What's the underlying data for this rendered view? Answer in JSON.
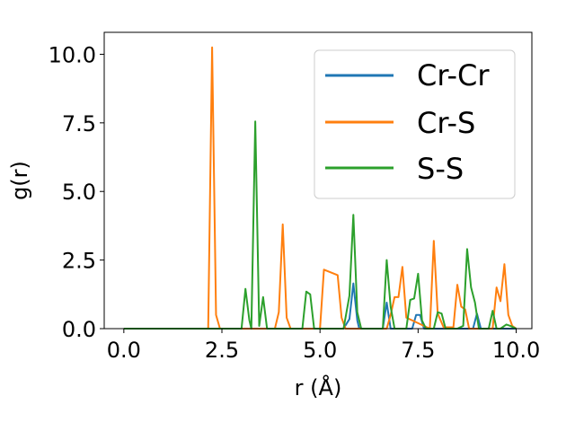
{
  "chart_data": {
    "type": "line",
    "xlabel": "r (Å)",
    "ylabel": "g(r)",
    "xlim": [
      -0.5,
      10.4
    ],
    "ylim": [
      0.0,
      10.8
    ],
    "xticks": [
      "0.0",
      "2.5",
      "5.0",
      "7.5",
      "10.0"
    ],
    "yticks": [
      "0.0",
      "2.5",
      "5.0",
      "7.5",
      "10.0"
    ],
    "grid": false,
    "legend": "top-right",
    "series": [
      {
        "name": "Cr-Cr",
        "color": "#1f77b4",
        "x": [
          0.0,
          5.6,
          5.75,
          5.85,
          5.95,
          6.0,
          6.6,
          6.7,
          6.8,
          7.35,
          7.45,
          7.55,
          7.65,
          8.9,
          9.0,
          9.1,
          10.0
        ],
        "y": [
          0.0,
          0.0,
          0.35,
          1.65,
          0.3,
          0.0,
          0.0,
          0.95,
          0.0,
          0.0,
          0.5,
          0.5,
          0.0,
          0.0,
          0.55,
          0.0,
          0.0
        ]
      },
      {
        "name": "Cr-S",
        "color": "#ff7f0e",
        "x": [
          0.0,
          2.15,
          2.25,
          2.35,
          2.45,
          3.85,
          3.95,
          4.05,
          4.15,
          4.25,
          5.0,
          5.1,
          5.45,
          5.55,
          5.65,
          6.7,
          6.8,
          6.9,
          7.0,
          7.1,
          7.2,
          7.8,
          7.9,
          8.0,
          8.15,
          8.4,
          8.5,
          8.6,
          8.7,
          8.8,
          9.4,
          9.5,
          9.6,
          9.7,
          9.8,
          9.9,
          10.0
        ],
        "y": [
          0.0,
          0.0,
          10.25,
          0.5,
          0.0,
          0.0,
          0.6,
          3.8,
          0.4,
          0.0,
          0.0,
          2.15,
          1.95,
          0.4,
          0.0,
          0.0,
          0.5,
          1.15,
          1.15,
          2.25,
          0.4,
          0.0,
          3.2,
          0.55,
          0.05,
          0.05,
          1.6,
          0.8,
          0.7,
          0.0,
          0.0,
          1.5,
          1.0,
          2.35,
          0.5,
          0.1,
          0.0
        ]
      },
      {
        "name": "S-S",
        "color": "#2ca02c",
        "x": [
          0.0,
          3.0,
          3.1,
          3.2,
          3.25,
          3.35,
          3.45,
          3.55,
          3.65,
          3.75,
          4.55,
          4.65,
          4.75,
          4.85,
          5.6,
          5.75,
          5.85,
          5.95,
          6.05,
          6.6,
          6.7,
          6.8,
          6.9,
          7.2,
          7.3,
          7.4,
          7.5,
          7.6,
          7.7,
          7.9,
          8.0,
          8.1,
          8.2,
          8.4,
          8.5,
          8.65,
          8.75,
          8.85,
          8.95,
          9.05,
          9.3,
          9.4,
          9.5,
          9.6,
          9.75,
          9.85,
          10.0
        ],
        "y": [
          0.0,
          0.0,
          1.45,
          0.3,
          0.0,
          7.55,
          0.1,
          1.15,
          0.0,
          0.0,
          0.0,
          1.35,
          1.25,
          0.0,
          0.0,
          1.2,
          4.15,
          0.6,
          0.0,
          0.0,
          2.5,
          0.8,
          0.0,
          0.0,
          1.05,
          1.1,
          2.0,
          0.3,
          0.0,
          0.0,
          0.6,
          0.55,
          0.0,
          0.0,
          0.0,
          0.1,
          2.9,
          1.5,
          0.95,
          0.0,
          0.0,
          0.65,
          0.0,
          0.0,
          0.15,
          0.1,
          0.0
        ]
      }
    ]
  }
}
